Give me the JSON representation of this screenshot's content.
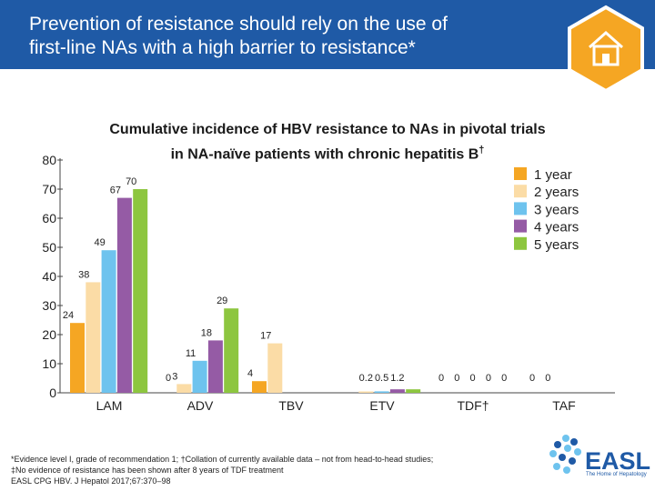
{
  "header": {
    "title_line1": "Prevention of resistance should rely on the use of",
    "title_line2": "first-line NAs with a high barrier to resistance*"
  },
  "chart_data": {
    "type": "bar",
    "title_line1": "Cumulative incidence of HBV resistance to NAs in pivotal trials",
    "title_line2": "in NA-naïve patients with chronic hepatitis B",
    "title_mark": "†",
    "categories": [
      "LAM",
      "ADV",
      "TBV",
      "ETV",
      "TDF†",
      "TAF"
    ],
    "yticks": [
      0,
      10,
      20,
      30,
      40,
      50,
      60,
      70,
      80
    ],
    "ylim": [
      0,
      80
    ],
    "legend_position": "top-right",
    "series": [
      {
        "name": "1 year",
        "color": "#f5a623",
        "values": [
          24,
          0,
          4,
          null,
          0,
          0
        ],
        "labels": [
          "24",
          "0",
          "4",
          "",
          "0",
          "0"
        ]
      },
      {
        "name": "2 years",
        "color": "#fbdca6",
        "values": [
          38,
          3,
          17,
          0.2,
          0,
          0
        ],
        "labels": [
          "38",
          "3",
          "17",
          "0.2",
          "0",
          "0"
        ]
      },
      {
        "name": "3 years",
        "color": "#6ec3ee",
        "values": [
          49,
          11,
          null,
          0.5,
          0,
          null
        ],
        "labels": [
          "49",
          "11",
          "",
          "0.5",
          "0",
          ""
        ]
      },
      {
        "name": "4 years",
        "color": "#955ba5",
        "values": [
          67,
          18,
          null,
          1.2,
          0,
          null
        ],
        "labels": [
          "67",
          "18",
          "",
          "1.2",
          "0",
          ""
        ]
      },
      {
        "name": "5 years",
        "color": "#8dc63f",
        "values": [
          70,
          29,
          null,
          1.2,
          0,
          null
        ],
        "labels": [
          "70",
          "29",
          "",
          "",
          "0",
          ""
        ]
      }
    ]
  },
  "footnote": {
    "line1": "*Evidence level I, grade of recommendation 1; †Collation of currently available data – not from head-to-head studies;",
    "line2": "‡No evidence of resistance has been shown after 8 years of TDF treatment",
    "line3": "EASL CPG HBV. J Hepatol 2017;67:370–98"
  },
  "logo": {
    "word": "EASL",
    "tagline": "The Home of Hepatology"
  },
  "icons": {
    "home": "home-icon",
    "logo_mark": "easl-dots-icon"
  }
}
